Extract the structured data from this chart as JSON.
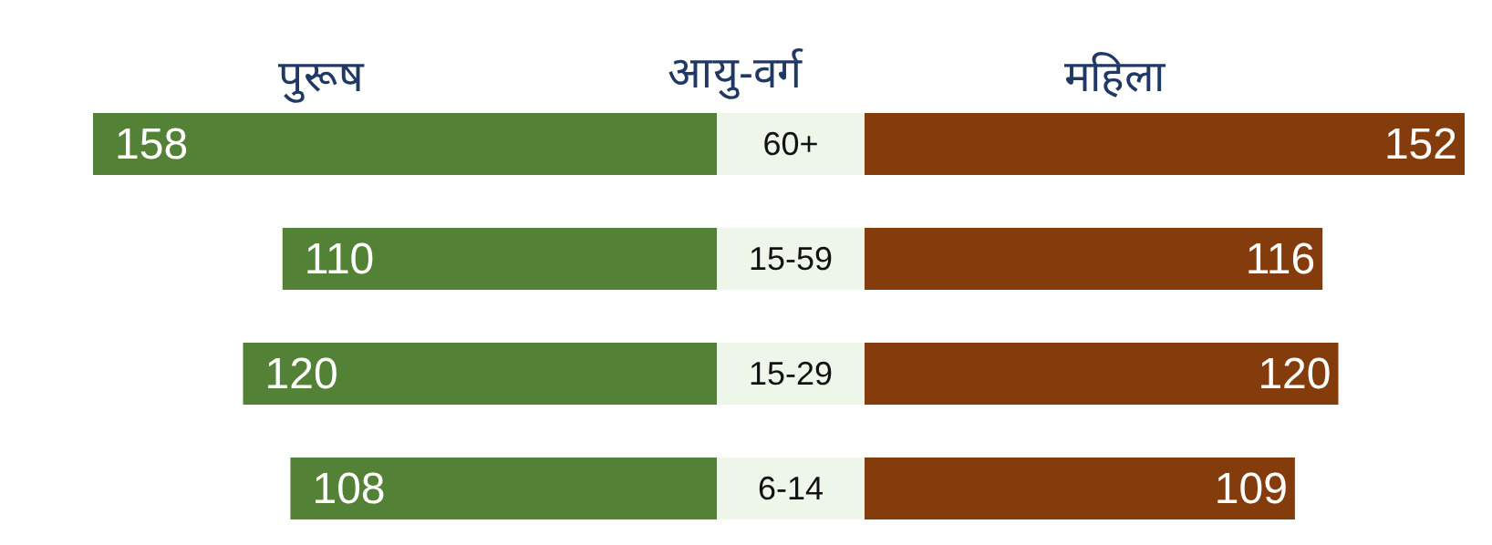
{
  "chart_data": [
    {
      "type": "bar",
      "orientation": "horizontal",
      "ylabel": "आयु-वर्ग",
      "categories": [
        "60+",
        "15-59",
        "15-29",
        "6-14"
      ],
      "series": [
        {
          "name": "पुरूष",
          "color": "#538135",
          "values": [
            158,
            110,
            120,
            108
          ]
        }
      ],
      "data_labels": true
    },
    {
      "type": "bar",
      "orientation": "horizontal",
      "categories": [
        null,
        null,
        null,
        null
      ],
      "series": [
        {
          "name": "महिला",
          "color": "#843c0c",
          "values": [
            152,
            116,
            120,
            109
          ]
        }
      ],
      "data_labels": true
    }
  ]
}
